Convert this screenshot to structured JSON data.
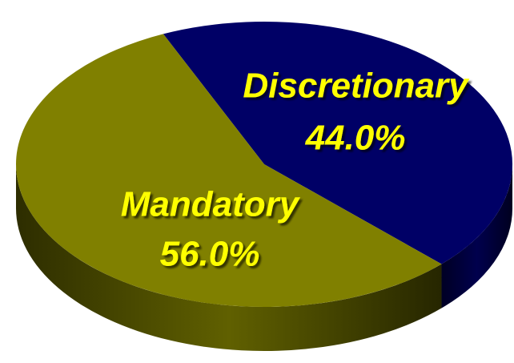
{
  "chart_data": {
    "type": "pie",
    "categories": [
      "Discretionary",
      "Mandatory"
    ],
    "values": [
      44.0,
      56.0
    ],
    "value_labels": [
      "44.0%",
      "56.0%"
    ],
    "colors": [
      "#000066",
      "#808000"
    ]
  }
}
